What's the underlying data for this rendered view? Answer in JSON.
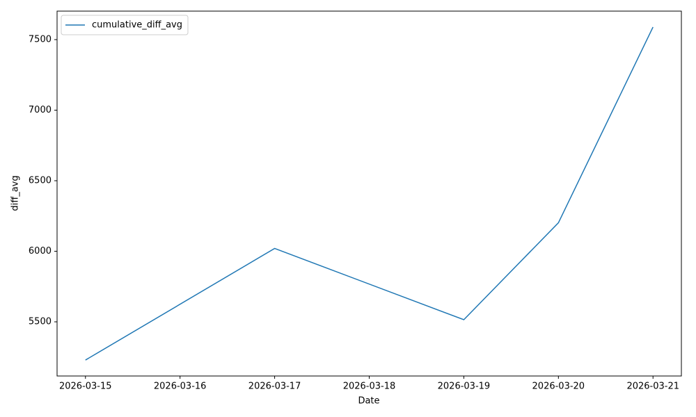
{
  "chart_data": {
    "type": "line",
    "x_label": "Date",
    "y_label": "diff_avg",
    "x": [
      "2026-03-15",
      "2026-03-17",
      "2026-03-19",
      "2026-03-20",
      "2026-03-21"
    ],
    "series": [
      {
        "name": "cumulative_diff_avg",
        "color": "#1f77b4",
        "values": [
          5229,
          6020,
          5515,
          6202,
          7589
        ]
      }
    ],
    "xticks": [
      "2026-03-15",
      "2026-03-16",
      "2026-03-17",
      "2026-03-18",
      "2026-03-19",
      "2026-03-20",
      "2026-03-21"
    ],
    "ylim": [
      5116,
      7702
    ],
    "yticks": [
      5500,
      6000,
      6500,
      7000,
      7500
    ],
    "legend": "upper left",
    "grid": false
  }
}
